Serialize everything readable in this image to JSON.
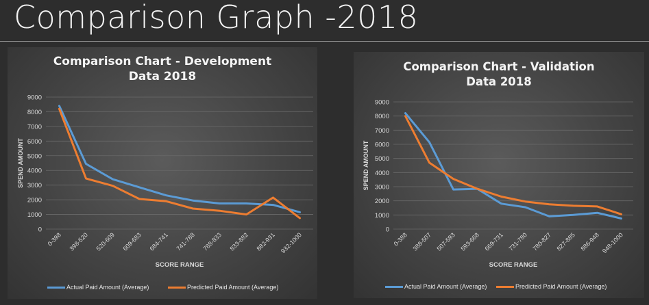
{
  "slide": {
    "title": "Comparison Graph -2018"
  },
  "colors": {
    "actual": "#5b9bd5",
    "predicted": "#ed7d31",
    "grid": "#6a6a6a",
    "text": "#d9d9d9"
  },
  "legend": [
    {
      "label": "Actual Paid Amount (Average)",
      "color": "#5b9bd5"
    },
    {
      "label": "Predicted Paid Amount (Average)",
      "color": "#ed7d31"
    }
  ],
  "chart_data": [
    {
      "type": "line",
      "title_lines": [
        "Comparison Chart - Development",
        "Data 2018"
      ],
      "xlabel": "SCORE RANGE",
      "ylabel": "SPEND AMOUNT",
      "ylim": [
        0,
        9000
      ],
      "yticks": [
        0,
        1000,
        2000,
        3000,
        4000,
        5000,
        6000,
        7000,
        8000,
        9000
      ],
      "grid": true,
      "legend_position": "bottom",
      "categories": [
        "0-398",
        "398-520",
        "520-609",
        "609-683",
        "684-741",
        "741-788",
        "788-833",
        "833-882",
        "882-931",
        "932-1000"
      ],
      "series": [
        {
          "name": "Actual Paid Amount (Average)",
          "color": "#5b9bd5",
          "values": [
            8400,
            4450,
            3400,
            2850,
            2300,
            1950,
            1750,
            1750,
            1650,
            1150
          ]
        },
        {
          "name": "Predicted Paid Amount (Average)",
          "color": "#ed7d31",
          "values": [
            8200,
            3450,
            2950,
            2050,
            1900,
            1400,
            1250,
            1000,
            2150,
            750
          ]
        }
      ]
    },
    {
      "type": "line",
      "title_lines": [
        "Comparison Chart - Validation",
        "Data 2018"
      ],
      "xlabel": "SCORE RANGE",
      "ylabel": "SPEND AMOUNT",
      "ylim": [
        0,
        9000
      ],
      "yticks": [
        0,
        1000,
        2000,
        3000,
        4000,
        5000,
        6000,
        7000,
        8000,
        9000
      ],
      "grid": true,
      "legend_position": "bottom",
      "categories": [
        "0-388",
        "388-507",
        "507-593",
        "593-668",
        "669-731",
        "731-780",
        "780-827",
        "827-885",
        "886-948",
        "948-1000"
      ],
      "series": [
        {
          "name": "Actual Paid Amount (Average)",
          "color": "#5b9bd5",
          "values": [
            8200,
            6150,
            2800,
            2850,
            1800,
            1550,
            900,
            1000,
            1150,
            750
          ]
        },
        {
          "name": "Predicted Paid Amount (Average)",
          "color": "#ed7d31",
          "values": [
            8000,
            4700,
            3550,
            2850,
            2300,
            1950,
            1750,
            1650,
            1600,
            1050
          ]
        }
      ]
    }
  ]
}
